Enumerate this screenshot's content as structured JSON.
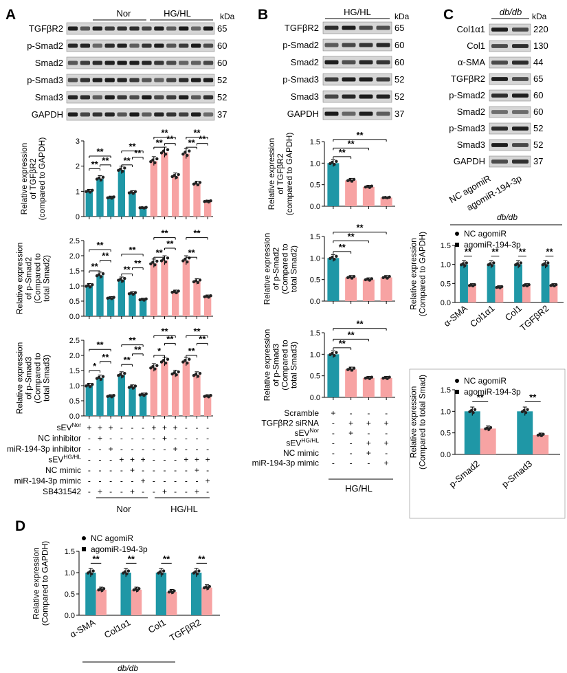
{
  "colors": {
    "control": "#1f97a6",
    "treated": "#f7a3a3",
    "blot_dark": "#1b1b1b",
    "blot_bg": "#cfcfcf"
  },
  "panel_labels": [
    "A",
    "B",
    "C",
    "D"
  ],
  "kda": "kDa",
  "sig": {
    "dstar": "**",
    "star": "*"
  },
  "blots": {
    "A": {
      "groups": [
        "Nor",
        "HG/HL"
      ],
      "rows": [
        {
          "label": "TGFβR2",
          "kda": "65"
        },
        {
          "label": "p-Smad2",
          "kda": "60"
        },
        {
          "label": "Smad2",
          "kda": "60"
        },
        {
          "label": "p-Smad3",
          "kda": "52"
        },
        {
          "label": "Smad3",
          "kda": "52"
        },
        {
          "label": "GAPDH",
          "kda": "37"
        }
      ]
    },
    "B": {
      "groups": [
        "HG/HL"
      ],
      "rows": [
        {
          "label": "TGFβR2",
          "kda": "65"
        },
        {
          "label": "p-Smad2",
          "kda": "60"
        },
        {
          "label": "Smad2",
          "kda": "60"
        },
        {
          "label": "p-Smad3",
          "kda": "52"
        },
        {
          "label": "Smad3",
          "kda": "52"
        },
        {
          "label": "GAPDH",
          "kda": "37"
        }
      ]
    },
    "C": {
      "groups": [
        "db/db"
      ],
      "rows": [
        {
          "label": "Col1α1",
          "kda": "220"
        },
        {
          "label": "Col1",
          "kda": "130"
        },
        {
          "label": "α-SMA",
          "kda": "44"
        },
        {
          "label": "TGFβR2",
          "kda": "65"
        },
        {
          "label": "p-Smad2",
          "kda": "60"
        },
        {
          "label": "Smad2",
          "kda": "60"
        },
        {
          "label": "p-Smad3",
          "kda": "52"
        },
        {
          "label": "Smad3",
          "kda": "52"
        },
        {
          "label": "GAPDH",
          "kda": "37"
        }
      ],
      "lanes": [
        "NC agomiR",
        "agomiR-194-3p"
      ]
    }
  },
  "treatments_A": {
    "rows": [
      {
        "label": "sEV",
        "sup": "Nor",
        "marks": [
          "+",
          "+",
          "+",
          "-",
          "-",
          "-",
          "+",
          "+",
          "+",
          "-",
          "-",
          "-"
        ]
      },
      {
        "label": "NC inhibitor",
        "sup": "",
        "marks": [
          "-",
          "+",
          "-",
          "-",
          "-",
          "-",
          "-",
          "+",
          "-",
          "-",
          "-",
          "-"
        ]
      },
      {
        "label": "miR-194-3p inhibitor",
        "sup": "",
        "marks": [
          "-",
          "-",
          "+",
          "-",
          "-",
          "-",
          "-",
          "-",
          "+",
          "-",
          "-",
          "-"
        ]
      },
      {
        "label": "sEV",
        "sup": "HG/HL",
        "marks": [
          "-",
          "-",
          "-",
          "+",
          "+",
          "+",
          "-",
          "-",
          "-",
          "+",
          "+",
          "+"
        ]
      },
      {
        "label": "NC mimic",
        "sup": "",
        "marks": [
          "-",
          "-",
          "-",
          "-",
          "+",
          "-",
          "-",
          "-",
          "-",
          "-",
          "+",
          "-"
        ]
      },
      {
        "label": "miR-194-3p mimic",
        "sup": "",
        "marks": [
          "-",
          "-",
          "-",
          "-",
          "-",
          "+",
          "-",
          "-",
          "-",
          "-",
          "-",
          "+"
        ]
      },
      {
        "label": "SB431542",
        "sup": "",
        "marks": [
          "-",
          "+",
          "-",
          "-",
          "+",
          "-",
          "-",
          "+",
          "-",
          "-",
          "+",
          "-"
        ]
      }
    ],
    "groups": [
      "Nor",
      "HG/HL"
    ]
  },
  "treatments_B": {
    "rows": [
      {
        "label": "Scramble",
        "sup": "",
        "marks": [
          "+",
          "-",
          "-",
          "-"
        ]
      },
      {
        "label": "TGFβR2 siRNA",
        "sup": "",
        "marks": [
          "-",
          "+",
          "+",
          "+"
        ]
      },
      {
        "label": "sEV",
        "sup": "Nor",
        "marks": [
          "-",
          "+",
          "-",
          "-"
        ]
      },
      {
        "label": "sEV",
        "sup": "HG/HL",
        "marks": [
          "-",
          "-",
          "+",
          "+"
        ]
      },
      {
        "label": "NC mimic",
        "sup": "",
        "marks": [
          "-",
          "-",
          "+",
          "-"
        ]
      },
      {
        "label": "miR-194-3p mimic",
        "sup": "",
        "marks": [
          "-",
          "-",
          "-",
          "+"
        ]
      }
    ],
    "group": "HG/HL"
  },
  "chart_data": [
    {
      "id": "A1",
      "type": "bar",
      "title": "",
      "ylabel": [
        "Relative expression",
        "of TGFβR2",
        "(compared to GAPDH)"
      ],
      "ylim": [
        0,
        3
      ],
      "yticks": [
        0,
        1,
        2,
        3
      ],
      "values": [
        1.0,
        1.5,
        0.75,
        1.85,
        0.95,
        0.35,
        2.2,
        2.55,
        1.6,
        2.5,
        1.3,
        0.6
      ],
      "colors": [
        "c",
        "c",
        "c",
        "c",
        "c",
        "c",
        "t",
        "t",
        "t",
        "t",
        "t",
        "t"
      ],
      "sig": [
        {
          "a": 0,
          "b": 2,
          "y": 2.4,
          "t": "**"
        },
        {
          "a": 0,
          "b": 1,
          "y": 1.9,
          "t": "**"
        },
        {
          "a": 1,
          "b": 2,
          "y": 2.05,
          "t": "**"
        },
        {
          "a": 3,
          "b": 5,
          "y": 2.6,
          "t": "**"
        },
        {
          "a": 3,
          "b": 4,
          "y": 2.05,
          "t": "**"
        },
        {
          "a": 4,
          "b": 5,
          "y": 2.35,
          "t": "**"
        },
        {
          "a": 6,
          "b": 8,
          "y": 3.15,
          "t": "**"
        },
        {
          "a": 6,
          "b": 7,
          "y": 2.75,
          "t": "**"
        },
        {
          "a": 7,
          "b": 8,
          "y": 2.9,
          "t": "**"
        },
        {
          "a": 9,
          "b": 11,
          "y": 3.15,
          "t": "**"
        },
        {
          "a": 9,
          "b": 10,
          "y": 2.75,
          "t": "**"
        },
        {
          "a": 10,
          "b": 11,
          "y": 2.9,
          "t": "**"
        }
      ]
    },
    {
      "id": "A2",
      "type": "bar",
      "title": "",
      "ylabel": [
        "Relative expression",
        "of p-Smad2",
        "(Compared to",
        "total Smad2)"
      ],
      "ylim": [
        0,
        2.5
      ],
      "yticks": [
        0.0,
        0.5,
        1.0,
        1.5,
        2.0,
        2.5
      ],
      "values": [
        1.0,
        1.35,
        0.6,
        1.2,
        0.75,
        0.55,
        1.75,
        1.85,
        0.8,
        1.85,
        1.15,
        0.65
      ],
      "colors": [
        "c",
        "c",
        "c",
        "c",
        "c",
        "c",
        "t",
        "t",
        "t",
        "t",
        "t",
        "t"
      ],
      "sig": [
        {
          "a": 0,
          "b": 2,
          "y": 2.2,
          "t": "**"
        },
        {
          "a": 0,
          "b": 1,
          "y": 1.5,
          "t": "**"
        },
        {
          "a": 1,
          "b": 2,
          "y": 1.85,
          "t": "**"
        },
        {
          "a": 3,
          "b": 5,
          "y": 2.05,
          "t": "**"
        },
        {
          "a": 3,
          "b": 4,
          "y": 1.4,
          "t": "**"
        },
        {
          "a": 4,
          "b": 5,
          "y": 1.6,
          "t": "**"
        },
        {
          "a": 6,
          "b": 8,
          "y": 2.6,
          "t": "**"
        },
        {
          "a": 6,
          "b": 7,
          "y": 1.95,
          "t": "**"
        },
        {
          "a": 7,
          "b": 8,
          "y": 2.25,
          "t": "**"
        },
        {
          "a": 9,
          "b": 11,
          "y": 2.6,
          "t": "**"
        },
        {
          "a": 9,
          "b": 10,
          "y": 1.95,
          "t": "**"
        }
      ]
    },
    {
      "id": "A3",
      "type": "bar",
      "title": "",
      "ylabel": [
        "Relative expression",
        "of p-Smad3",
        "(Compared to",
        "total Smad3)"
      ],
      "ylim": [
        0,
        2.5
      ],
      "yticks": [
        0.0,
        0.5,
        1.0,
        1.5,
        2.0,
        2.5
      ],
      "values": [
        1.0,
        1.25,
        0.65,
        1.35,
        0.95,
        0.7,
        1.6,
        1.8,
        1.4,
        1.8,
        1.35,
        0.65
      ],
      "colors": [
        "c",
        "c",
        "c",
        "c",
        "c",
        "c",
        "t",
        "t",
        "t",
        "t",
        "t",
        "t"
      ],
      "sig": [
        {
          "a": 0,
          "b": 2,
          "y": 2.2,
          "t": "**"
        },
        {
          "a": 0,
          "b": 1,
          "y": 1.5,
          "t": "*"
        },
        {
          "a": 1,
          "b": 2,
          "y": 1.8,
          "t": "**"
        },
        {
          "a": 3,
          "b": 5,
          "y": 2.35,
          "t": "**"
        },
        {
          "a": 3,
          "b": 4,
          "y": 1.7,
          "t": "**"
        },
        {
          "a": 4,
          "b": 5,
          "y": 2.05,
          "t": "**"
        },
        {
          "a": 6,
          "b": 8,
          "y": 2.65,
          "t": "**"
        },
        {
          "a": 6,
          "b": 7,
          "y": 2.0,
          "t": "*"
        },
        {
          "a": 7,
          "b": 8,
          "y": 2.4,
          "t": "**"
        },
        {
          "a": 9,
          "b": 11,
          "y": 2.65,
          "t": "**"
        },
        {
          "a": 9,
          "b": 10,
          "y": 2.0,
          "t": "**"
        },
        {
          "a": 10,
          "b": 11,
          "y": 2.4,
          "t": "**"
        }
      ]
    },
    {
      "id": "B1",
      "type": "bar",
      "title": "",
      "ylabel": [
        "Relative expression",
        "of TGFβR2",
        "(compared to GAPDH)"
      ],
      "ylim": [
        0,
        1.5
      ],
      "yticks": [
        0.0,
        0.5,
        1.0,
        1.5
      ],
      "values": [
        1.0,
        0.6,
        0.45,
        0.2
      ],
      "colors": [
        "c",
        "t",
        "t",
        "t"
      ],
      "sig": [
        {
          "a": 0,
          "b": 3,
          "y": 1.55,
          "t": "**"
        },
        {
          "a": 0,
          "b": 2,
          "y": 1.35,
          "t": "**"
        },
        {
          "a": 0,
          "b": 1,
          "y": 1.15,
          "t": "**"
        }
      ]
    },
    {
      "id": "B2",
      "type": "bar",
      "title": "",
      "ylabel": [
        "Relative expression",
        "of p-Smad2",
        "(Compared to",
        "total Smad2)"
      ],
      "ylim": [
        0,
        1.5
      ],
      "yticks": [
        0.0,
        0.5,
        1.0,
        1.5
      ],
      "values": [
        1.0,
        0.55,
        0.5,
        0.55
      ],
      "colors": [
        "c",
        "t",
        "t",
        "t"
      ],
      "sig": [
        {
          "a": 0,
          "b": 3,
          "y": 1.6,
          "t": "**"
        },
        {
          "a": 0,
          "b": 2,
          "y": 1.4,
          "t": "**"
        },
        {
          "a": 0,
          "b": 1,
          "y": 1.15,
          "t": "**"
        }
      ]
    },
    {
      "id": "B3",
      "type": "bar",
      "title": "",
      "ylabel": [
        "Relative expression",
        "of p-Smad3",
        "(Compared to",
        "total Smad3)"
      ],
      "ylim": [
        0,
        1.5
      ],
      "yticks": [
        0.0,
        0.5,
        1.0,
        1.5
      ],
      "values": [
        1.0,
        0.65,
        0.45,
        0.45
      ],
      "colors": [
        "c",
        "t",
        "t",
        "t"
      ],
      "sig": [
        {
          "a": 0,
          "b": 3,
          "y": 1.6,
          "t": "**"
        },
        {
          "a": 0,
          "b": 2,
          "y": 1.35,
          "t": "**"
        },
        {
          "a": 0,
          "b": 1,
          "y": 1.15,
          "t": "**"
        }
      ]
    },
    {
      "id": "C1",
      "type": "bar",
      "title": "db/db",
      "ylabel": [
        "Relative expression",
        "(Compared to GAPDH)"
      ],
      "ylim": [
        0,
        1.5
      ],
      "yticks": [
        0.0,
        0.5,
        1.0,
        1.5
      ],
      "categories": [
        "α-SMA",
        "Col1α1",
        "Col1",
        "TGFβR2"
      ],
      "series": [
        {
          "name": "NC agomiR",
          "values": [
            1.0,
            1.0,
            1.0,
            1.0
          ]
        },
        {
          "name": "agomiR-194-3p",
          "values": [
            0.45,
            0.4,
            0.45,
            0.45
          ]
        }
      ],
      "sig_text": "**"
    },
    {
      "id": "C2",
      "type": "bar",
      "title": "",
      "ylabel": [
        "Relative expression",
        "(Compared to total Smad)"
      ],
      "ylim": [
        0,
        1.5
      ],
      "yticks": [
        0.0,
        0.5,
        1.0,
        1.5
      ],
      "categories": [
        "p-Smad2",
        "p-Smad3"
      ],
      "series": [
        {
          "name": "NC agomiR",
          "values": [
            1.0,
            1.0
          ]
        },
        {
          "name": "agomiR-194-3p",
          "values": [
            0.6,
            0.45
          ]
        }
      ],
      "sig_text": "**"
    },
    {
      "id": "D",
      "type": "bar",
      "title": "",
      "ylabel": [
        "Relative expression",
        "(Compared to GAPDH)"
      ],
      "ylim": [
        0,
        1.5
      ],
      "yticks": [
        0.0,
        0.5,
        1.0,
        1.5
      ],
      "categories": [
        "α-SMA",
        "Col1α1",
        "Col1",
        "TGFβR2"
      ],
      "series": [
        {
          "name": "NC agomiR",
          "values": [
            1.0,
            1.0,
            1.0,
            1.0
          ]
        },
        {
          "name": "agomiR-194-3p",
          "values": [
            0.6,
            0.6,
            0.55,
            0.65
          ]
        }
      ],
      "sig_text": "**",
      "footer": "db/db"
    }
  ]
}
